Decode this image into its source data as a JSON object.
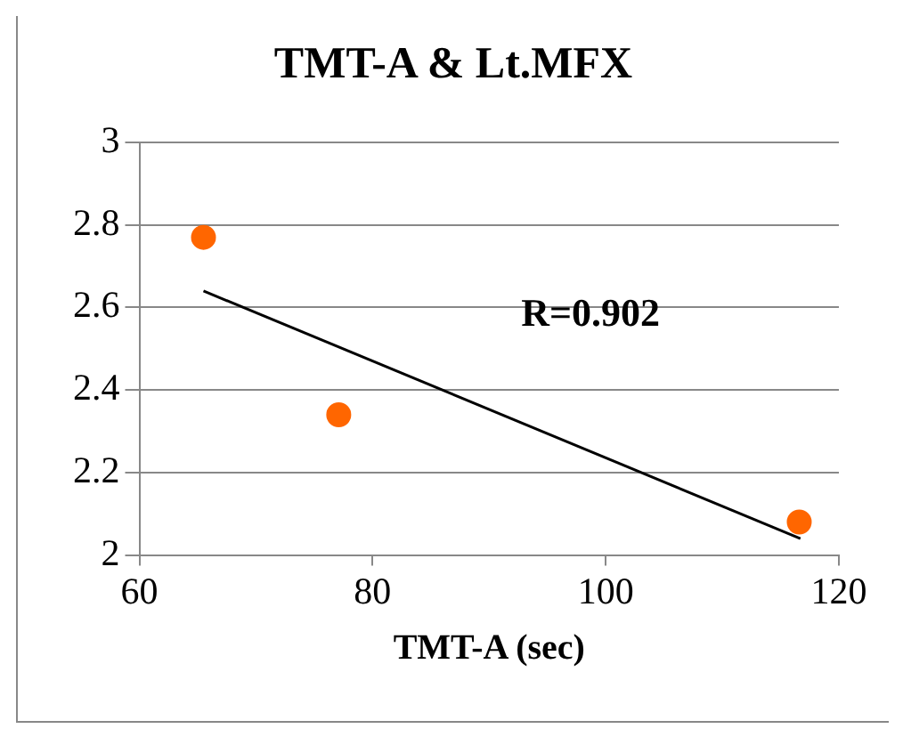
{
  "chart_data": {
    "type": "scatter",
    "title": "TMT-A & Lt.MFX",
    "xlabel": "TMT-A (sec)",
    "series": [
      {
        "color": "#ff6600",
        "marker": "circle",
        "x": [
          65.5,
          77.1,
          116.6
        ],
        "values": [
          2.77,
          2.34,
          2.08
        ]
      },
      {
        "type": "line",
        "color": "#000000",
        "marker": "none",
        "x": [
          65.5,
          116.7
        ],
        "values": [
          2.64,
          2.04
        ]
      }
    ],
    "annotations": [
      "R=0.902"
    ],
    "xlim": [
      60,
      120
    ],
    "xticks": [
      60,
      80,
      100,
      120
    ],
    "ylim": [
      2,
      3
    ],
    "yticks": [
      2,
      2.2,
      2.4,
      2.6,
      2.8,
      3
    ],
    "grid": "y",
    "legend": false
  }
}
